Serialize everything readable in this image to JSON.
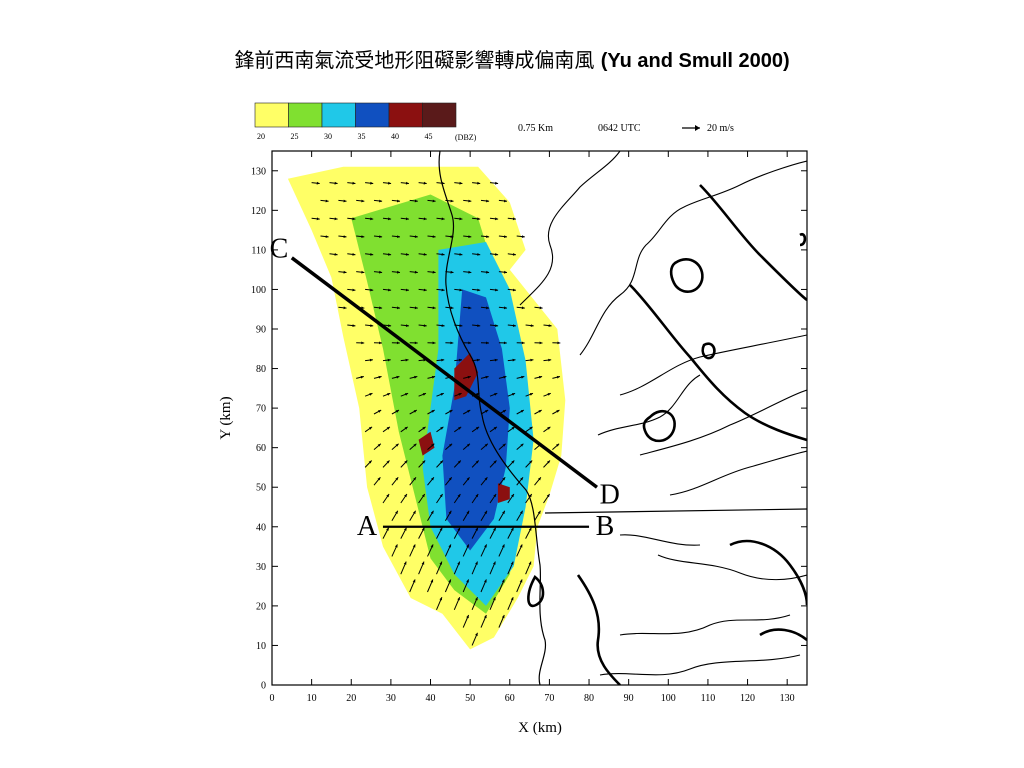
{
  "slide": {
    "title_zh": "鋒前西南氣流受地形阻礙影響轉成偏南風",
    "title_en": "(Yu and Smull 2000)"
  },
  "figure_header": {
    "height_label": "0.75 Km",
    "time_label": "0642 UTC",
    "vector_scale": "20 m/s"
  },
  "colorbar": {
    "colors": [
      "#ffff66",
      "#80e030",
      "#20c8e8",
      "#1050c0",
      "#8b1010",
      "#5a1a1a"
    ],
    "tick_labels": [
      "20",
      "25",
      "30",
      "35",
      "40",
      "45"
    ],
    "unit": "(DBZ)"
  },
  "chart_data": {
    "type": "heatmap",
    "description_free": true,
    "xlabel": "X (km)",
    "ylabel": "Y (km)",
    "xlim": [
      0,
      135
    ],
    "ylim": [
      0,
      135
    ],
    "x_ticks": [
      0,
      10,
      20,
      30,
      40,
      50,
      60,
      70,
      80,
      90,
      100,
      110,
      120,
      130
    ],
    "y_ticks": [
      0,
      10,
      20,
      30,
      40,
      50,
      60,
      70,
      80,
      90,
      100,
      110,
      120,
      130
    ],
    "cross_sections": [
      {
        "start_label": "C",
        "end_label": "D",
        "start": [
          5,
          108
        ],
        "end": [
          82,
          50
        ]
      },
      {
        "start_label": "A",
        "end_label": "B",
        "start": [
          28,
          40
        ],
        "end": [
          80,
          40
        ]
      }
    ],
    "reflectivity_regions": [
      {
        "level": "20",
        "polygon": [
          [
            4,
            128
          ],
          [
            18,
            131
          ],
          [
            52,
            131
          ],
          [
            60,
            122
          ],
          [
            64,
            110
          ],
          [
            60,
            105
          ],
          [
            72,
            90
          ],
          [
            74,
            72
          ],
          [
            73,
            58
          ],
          [
            70,
            48
          ],
          [
            67,
            40
          ],
          [
            66,
            30
          ],
          [
            62,
            22
          ],
          [
            56,
            12
          ],
          [
            50,
            9
          ],
          [
            43,
            18
          ],
          [
            35,
            22
          ],
          [
            28,
            35
          ],
          [
            24,
            50
          ],
          [
            22,
            70
          ],
          [
            18,
            88
          ],
          [
            15,
            103
          ],
          [
            10,
            115
          ]
        ]
      },
      {
        "level": "25",
        "polygon": [
          [
            20,
            118
          ],
          [
            40,
            124
          ],
          [
            52,
            118
          ],
          [
            56,
            105
          ],
          [
            60,
            90
          ],
          [
            64,
            72
          ],
          [
            65,
            55
          ],
          [
            62,
            40
          ],
          [
            60,
            28
          ],
          [
            54,
            18
          ],
          [
            46,
            24
          ],
          [
            40,
            32
          ],
          [
            36,
            48
          ],
          [
            32,
            64
          ],
          [
            28,
            85
          ],
          [
            24,
            102
          ]
        ]
      },
      {
        "level": "30",
        "polygon": [
          [
            42,
            110
          ],
          [
            54,
            112
          ],
          [
            60,
            100
          ],
          [
            64,
            82
          ],
          [
            66,
            62
          ],
          [
            64,
            45
          ],
          [
            61,
            30
          ],
          [
            54,
            20
          ],
          [
            46,
            28
          ],
          [
            40,
            40
          ],
          [
            38,
            55
          ],
          [
            40,
            70
          ],
          [
            42,
            85
          ]
        ]
      },
      {
        "level": "35",
        "polygon": [
          [
            48,
            100
          ],
          [
            54,
            98
          ],
          [
            58,
            85
          ],
          [
            60,
            70
          ],
          [
            59,
            55
          ],
          [
            56,
            42
          ],
          [
            50,
            34
          ],
          [
            44,
            42
          ],
          [
            43,
            58
          ],
          [
            46,
            75
          ]
        ]
      },
      {
        "level": "40",
        "polygon": [
          [
            46,
            80
          ],
          [
            50,
            84
          ],
          [
            52,
            79
          ],
          [
            49,
            73
          ],
          [
            46,
            72
          ]
        ]
      },
      {
        "level": "40",
        "polygon": [
          [
            57,
            51
          ],
          [
            60,
            50
          ],
          [
            60,
            47
          ],
          [
            57,
            46
          ]
        ]
      },
      {
        "level": "40",
        "polygon": [
          [
            37,
            62
          ],
          [
            40,
            64
          ],
          [
            41,
            60
          ],
          [
            38,
            58
          ]
        ]
      }
    ],
    "wind_vectors": {
      "u_north": 9,
      "v_north": -1,
      "u_south": 6,
      "v_south": 14,
      "spacing_km": 4.5
    }
  }
}
